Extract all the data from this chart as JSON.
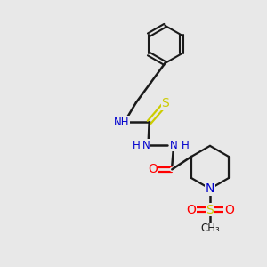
{
  "background_color": "#e8e8e8",
  "bond_color": "#1a1a1a",
  "N_color": "#0000cd",
  "O_color": "#ff0000",
  "S_thio_color": "#cccc00",
  "S_sulfonyl_color": "#cccc00",
  "figsize": [
    3.0,
    3.0
  ],
  "dpi": 100,
  "xlim": [
    0,
    10
  ],
  "ylim": [
    0,
    10
  ]
}
